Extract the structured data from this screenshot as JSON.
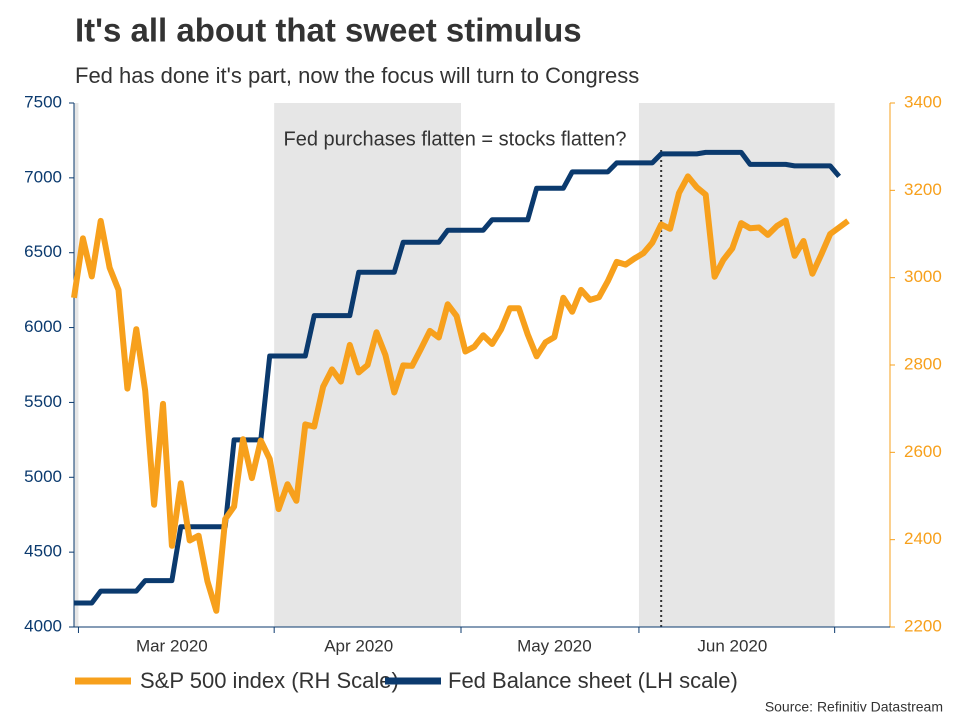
{
  "chart_data": {
    "type": "line",
    "title": "It's all about that sweet stimulus",
    "subtitle": "Fed has done it's part, now the focus will turn to Congress",
    "annotation": "Fed purchases flatten = stocks flatten?",
    "source": "Source: Refinitiv Datastream",
    "categories": [
      null,
      null,
      null,
      null,
      null,
      null,
      null,
      null,
      null,
      null,
      null,
      "Mar 2020",
      null,
      null,
      null,
      null,
      null,
      null,
      null,
      null,
      null,
      null,
      null,
      null,
      null,
      null,
      null,
      null,
      null,
      null,
      null,
      null,
      "Apr 2020",
      null,
      null,
      null,
      null,
      null,
      null,
      null,
      null,
      null,
      null,
      null,
      null,
      null,
      null,
      null,
      null,
      null,
      null,
      null,
      null,
      null,
      "May 2020",
      null,
      null,
      null,
      null,
      null,
      null,
      null,
      null,
      null,
      null,
      null,
      null,
      null,
      null,
      null,
      null,
      null,
      null,
      null,
      "Jun 2020",
      null,
      null,
      null,
      null,
      null,
      null,
      null,
      null,
      null,
      null,
      null,
      null,
      null
    ],
    "series": [
      {
        "name": "S&P 500 index (RH Scale)",
        "color": "#f7a01c",
        "axis": "y2",
        "values": [
          2954,
          3090,
          3003,
          3130,
          3023,
          2972,
          2746,
          2882,
          2741,
          2480,
          2711,
          2386,
          2529,
          2398,
          2409,
          2305,
          2237,
          2447,
          2476,
          2630,
          2541,
          2627,
          2585,
          2470,
          2527,
          2489,
          2664,
          2659,
          2750,
          2790,
          2762,
          2846,
          2783,
          2800,
          2875,
          2823,
          2737,
          2799,
          2798,
          2837,
          2878,
          2863,
          2939,
          2912,
          2831,
          2842,
          2868,
          2848,
          2881,
          2930,
          2930,
          2870,
          2820,
          2852,
          2864,
          2954,
          2922,
          2972,
          2949,
          2955,
          2992,
          3036,
          3030,
          3044,
          3056,
          3080,
          3122,
          3112,
          3194,
          3232,
          3207,
          3190,
          3002,
          3041,
          3067,
          3125,
          3113,
          3115,
          3098,
          3118,
          3131,
          3050,
          3084,
          3009,
          3053,
          3100,
          3115,
          3130
        ]
      },
      {
        "name": "Fed Balance sheet (LH scale)",
        "color": "#0b3a6e",
        "values": [
          4160,
          4160,
          4160,
          4240,
          4240,
          4240,
          4240,
          4240,
          4310,
          4310,
          4310,
          4310,
          4670,
          4670,
          4670,
          4670,
          4670,
          4670,
          5250,
          5250,
          5250,
          5250,
          5810,
          5810,
          5810,
          5810,
          5810,
          6080,
          6080,
          6080,
          6080,
          6080,
          6370,
          6370,
          6370,
          6370,
          6370,
          6570,
          6570,
          6570,
          6570,
          6570,
          6650,
          6650,
          6650,
          6650,
          6650,
          6720,
          6720,
          6720,
          6720,
          6720,
          6930,
          6930,
          6930,
          6930,
          7040,
          7040,
          7040,
          7040,
          7040,
          7100,
          7100,
          7100,
          7100,
          7100,
          7160,
          7160,
          7160,
          7160,
          7160,
          7170,
          7170,
          7170,
          7170,
          7170,
          7090,
          7090,
          7090,
          7090,
          7090,
          7080,
          7080,
          7080,
          7080,
          7080,
          7010,
          null
        ]
      }
    ],
    "ylim": [
      4000,
      7500
    ],
    "yticks": [
      4000,
      4500,
      5000,
      5500,
      6000,
      6500,
      7000,
      7500
    ],
    "y2lim": [
      2200,
      3400
    ],
    "y2ticks": [
      2200,
      2400,
      2600,
      2800,
      3000,
      3200,
      3400
    ]
  }
}
